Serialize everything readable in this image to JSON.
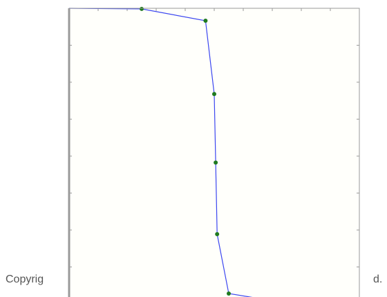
{
  "footer": {
    "left_text": "Copyrig",
    "right_text": "d."
  },
  "colors": {
    "plot_background": "#fffffb",
    "frame": "#9a9a9a",
    "line": "#3b46f0",
    "marker": "#1f7a1f"
  },
  "chart_data": {
    "type": "line",
    "title": "",
    "xlabel": "",
    "ylabel": "",
    "xlim": [
      0,
      1
    ],
    "ylim": [
      0,
      1
    ],
    "grid": false,
    "series": [
      {
        "x": [
          0.0,
          0.25,
          0.47,
          0.5,
          0.505,
          0.51,
          0.55,
          0.77,
          1.0
        ],
        "y": [
          1.0,
          0.998,
          0.958,
          0.71,
          0.478,
          0.236,
          0.035,
          0.0,
          0.0
        ],
        "markers_at": [
          1,
          2,
          3,
          4,
          5,
          6,
          7
        ]
      }
    ]
  }
}
